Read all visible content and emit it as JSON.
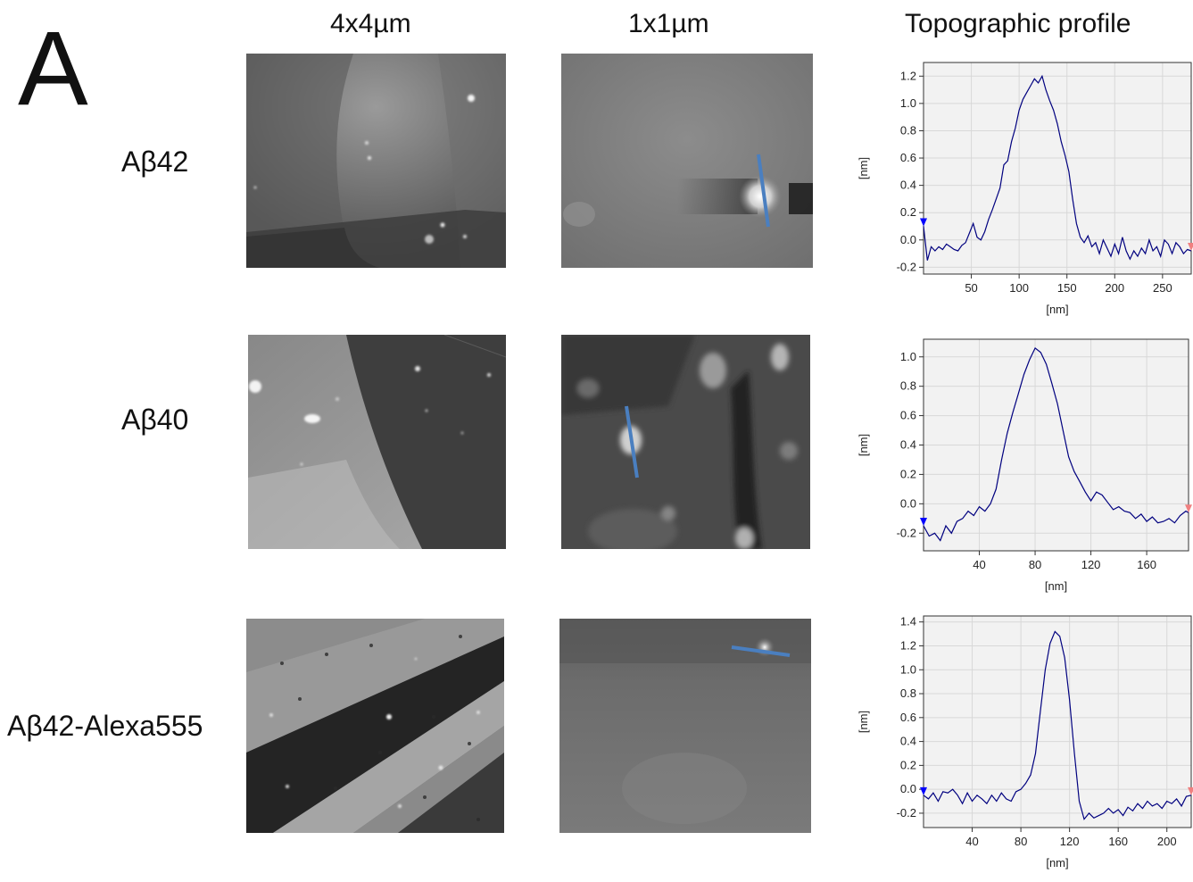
{
  "panel_label": "A",
  "column_headers": [
    "4x4µm",
    "1x1µm",
    "Topographic profile"
  ],
  "row_labels": [
    "Aβ42",
    "Aβ40",
    "Aβ42-Alexa555"
  ],
  "colors": {
    "profile_line": "#00007f",
    "section_line": "#4a7fc0",
    "left_marker": "#0000ff",
    "right_marker": "#f08080",
    "plot_bg": "#f2f2f2",
    "grid": "#d8d8d8"
  },
  "chart_data": [
    {
      "type": "line",
      "title": "",
      "xlabel": "[nm]",
      "ylabel": "[nm]",
      "xlim": [
        0,
        280
      ],
      "ylim": [
        -0.25,
        1.3
      ],
      "xticks": [
        50,
        100,
        150,
        200,
        250
      ],
      "yticks": [
        -0.2,
        0,
        0.2,
        0.4,
        0.6,
        0.8,
        1.0,
        1.2
      ],
      "ytick_labels": [
        "-0.2",
        "0.0",
        "0.2",
        "0.4",
        "0.6",
        "0.8",
        "1.0",
        "1.2"
      ],
      "series": [
        {
          "x": [
            0,
            4,
            8,
            12,
            16,
            20,
            24,
            28,
            32,
            36,
            40,
            44,
            48,
            52,
            56,
            60,
            64,
            68,
            72,
            76,
            80,
            84,
            88,
            92,
            96,
            100,
            104,
            108,
            112,
            116,
            120,
            124,
            128,
            132,
            136,
            140,
            144,
            148,
            152,
            156,
            160,
            164,
            168,
            172,
            176,
            180,
            184,
            188,
            192,
            196,
            200,
            204,
            208,
            212,
            216,
            220,
            224,
            228,
            232,
            236,
            240,
            244,
            248,
            252,
            256,
            260,
            264,
            268,
            272,
            276,
            280
          ],
          "y": [
            0.1,
            -0.15,
            -0.05,
            -0.08,
            -0.05,
            -0.07,
            -0.03,
            -0.05,
            -0.07,
            -0.08,
            -0.04,
            -0.02,
            0.05,
            0.12,
            0.02,
            0.0,
            0.06,
            0.15,
            0.22,
            0.3,
            0.38,
            0.55,
            0.58,
            0.72,
            0.82,
            0.95,
            1.03,
            1.08,
            1.13,
            1.18,
            1.15,
            1.2,
            1.1,
            1.02,
            0.95,
            0.85,
            0.72,
            0.62,
            0.5,
            0.3,
            0.12,
            0.02,
            -0.02,
            0.03,
            -0.05,
            -0.02,
            -0.1,
            0.0,
            -0.06,
            -0.12,
            -0.03,
            -0.1,
            0.02,
            -0.08,
            -0.14,
            -0.08,
            -0.12,
            -0.06,
            -0.1,
            0.0,
            -0.08,
            -0.05,
            -0.12,
            0.0,
            -0.03,
            -0.1,
            -0.02,
            -0.05,
            -0.1,
            -0.07,
            -0.08
          ]
        }
      ]
    },
    {
      "type": "line",
      "title": "",
      "xlabel": "[nm]",
      "ylabel": "[nm]",
      "xlim": [
        0,
        190
      ],
      "ylim": [
        -0.32,
        1.12
      ],
      "xticks": [
        40,
        80,
        120,
        160
      ],
      "yticks": [
        -0.2,
        0,
        0.2,
        0.4,
        0.6,
        0.8,
        1.0
      ],
      "ytick_labels": [
        "-0.2",
        "0.0",
        "0.2",
        "0.4",
        "0.6",
        "0.8",
        "1.0"
      ],
      "series": [
        {
          "x": [
            0,
            4,
            8,
            12,
            16,
            20,
            24,
            28,
            32,
            36,
            40,
            44,
            48,
            52,
            56,
            60,
            64,
            68,
            72,
            76,
            80,
            84,
            88,
            92,
            96,
            100,
            104,
            108,
            112,
            116,
            120,
            124,
            128,
            132,
            136,
            140,
            144,
            148,
            152,
            156,
            160,
            164,
            168,
            172,
            176,
            180,
            184,
            188,
            190
          ],
          "y": [
            -0.15,
            -0.22,
            -0.2,
            -0.25,
            -0.15,
            -0.2,
            -0.12,
            -0.1,
            -0.05,
            -0.08,
            -0.02,
            -0.05,
            0.0,
            0.1,
            0.3,
            0.48,
            0.62,
            0.75,
            0.88,
            0.98,
            1.06,
            1.03,
            0.95,
            0.82,
            0.68,
            0.5,
            0.32,
            0.22,
            0.15,
            0.08,
            0.02,
            0.08,
            0.06,
            0.01,
            -0.04,
            -0.02,
            -0.05,
            -0.06,
            -0.1,
            -0.07,
            -0.12,
            -0.09,
            -0.13,
            -0.12,
            -0.1,
            -0.13,
            -0.08,
            -0.05,
            -0.06
          ]
        }
      ]
    },
    {
      "type": "line",
      "title": "",
      "xlabel": "[nm]",
      "ylabel": "[nm]",
      "xlim": [
        0,
        220
      ],
      "ylim": [
        -0.32,
        1.45
      ],
      "xticks": [
        40,
        80,
        120,
        160,
        200
      ],
      "yticks": [
        -0.2,
        0,
        0.2,
        0.4,
        0.6,
        0.8,
        1.0,
        1.2,
        1.4
      ],
      "ytick_labels": [
        "-0.2",
        "0.0",
        "0.2",
        "0.4",
        "0.6",
        "0.8",
        "1.0",
        "1.2",
        "1.4"
      ],
      "series": [
        {
          "x": [
            0,
            4,
            8,
            12,
            16,
            20,
            24,
            28,
            32,
            36,
            40,
            44,
            48,
            52,
            56,
            60,
            64,
            68,
            72,
            76,
            80,
            84,
            88,
            92,
            96,
            100,
            104,
            108,
            112,
            116,
            120,
            124,
            128,
            132,
            136,
            140,
            144,
            148,
            152,
            156,
            160,
            164,
            168,
            172,
            176,
            180,
            184,
            188,
            192,
            196,
            200,
            204,
            208,
            212,
            216,
            220
          ],
          "y": [
            -0.05,
            -0.08,
            -0.03,
            -0.1,
            -0.02,
            -0.03,
            0.0,
            -0.05,
            -0.12,
            -0.03,
            -0.1,
            -0.05,
            -0.08,
            -0.12,
            -0.05,
            -0.1,
            -0.03,
            -0.08,
            -0.1,
            -0.02,
            0.0,
            0.05,
            0.12,
            0.3,
            0.65,
            1.0,
            1.22,
            1.32,
            1.28,
            1.1,
            0.75,
            0.3,
            -0.1,
            -0.25,
            -0.2,
            -0.24,
            -0.22,
            -0.2,
            -0.16,
            -0.2,
            -0.17,
            -0.22,
            -0.15,
            -0.18,
            -0.12,
            -0.16,
            -0.1,
            -0.14,
            -0.12,
            -0.16,
            -0.1,
            -0.12,
            -0.08,
            -0.14,
            -0.06,
            -0.05
          ]
        }
      ]
    }
  ]
}
